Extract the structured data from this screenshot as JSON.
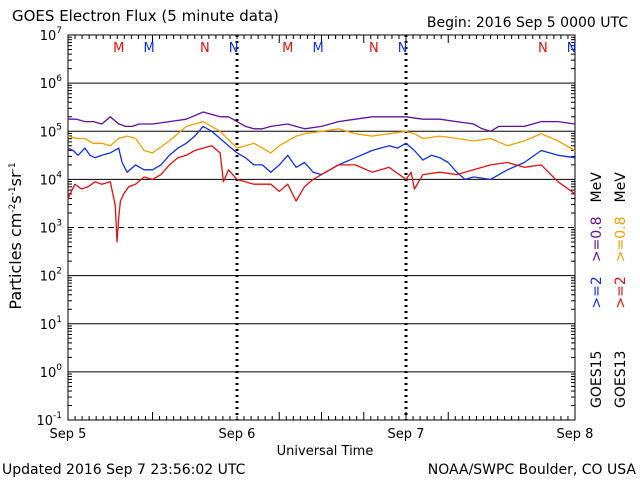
{
  "header": {
    "title": "GOES Electron Flux (5 minute data)",
    "begin": "Begin: 2016 Sep 5 0000 UTC"
  },
  "footer": {
    "updated": "Updated 2016 Sep  7 23:56:02 UTC",
    "credit": "NOAA/SWPC Boulder, CO USA"
  },
  "colors": {
    "goes15_ge2": "#1030e0",
    "goes13_ge2": "#e01010",
    "goes15_ge08": "#6010a0",
    "goes13_ge08": "#f0a000"
  },
  "chart_data": {
    "type": "line",
    "title": "GOES Electron Flux (5 minute data)",
    "xlabel": "Universal Time",
    "ylabel": "Particles cm-2s-1sr-1",
    "ylabel_parts": {
      "base": "Particles cm",
      "e1": "-2",
      "mid": "s",
      "e2": "-1",
      "mid2": "sr",
      "e3": "-1"
    },
    "yscale": "log",
    "ylim_exp": [
      -1,
      7
    ],
    "y_ticks": [
      {
        "exp": -1,
        "label": "10",
        "sup": "-1"
      },
      {
        "exp": 0,
        "label": "10",
        "sup": "0"
      },
      {
        "exp": 1,
        "label": "10",
        "sup": "1"
      },
      {
        "exp": 2,
        "label": "10",
        "sup": "2"
      },
      {
        "exp": 3,
        "label": "10",
        "sup": "3"
      },
      {
        "exp": 4,
        "label": "10",
        "sup": "4"
      },
      {
        "exp": 5,
        "label": "10",
        "sup": "5"
      },
      {
        "exp": 6,
        "label": "10",
        "sup": "6"
      },
      {
        "exp": 7,
        "label": "10",
        "sup": "7"
      }
    ],
    "xlim_days": [
      0,
      3
    ],
    "x_ticks": [
      {
        "day": 0,
        "label": "Sep 5"
      },
      {
        "day": 1,
        "label": "Sep 6"
      },
      {
        "day": 2,
        "label": "Sep 7"
      },
      {
        "day": 3,
        "label": "Sep 8"
      }
    ],
    "threshold_exp": 3,
    "markers": [
      {
        "day": 0.3,
        "text": "M",
        "color": "#e01010"
      },
      {
        "day": 0.48,
        "text": "M",
        "color": "#1030e0"
      },
      {
        "day": 0.81,
        "text": "N",
        "color": "#e01010"
      },
      {
        "day": 0.98,
        "text": "N",
        "color": "#1030e0"
      },
      {
        "day": 1.3,
        "text": "M",
        "color": "#e01010"
      },
      {
        "day": 1.48,
        "text": "M",
        "color": "#1030e0"
      },
      {
        "day": 1.81,
        "text": "N",
        "color": "#e01010"
      },
      {
        "day": 1.98,
        "text": "N",
        "color": "#1030e0"
      },
      {
        "day": 2.81,
        "text": "N",
        "color": "#e01010"
      },
      {
        "day": 2.98,
        "text": "N",
        "color": "#1030e0"
      }
    ],
    "legend": [
      {
        "text": "GOES15",
        "color": "#000000"
      },
      {
        "text": ">=2",
        "color": "#1030e0"
      },
      {
        "text": ">=0.8",
        "color": "#6010a0"
      },
      {
        "text": "MeV",
        "color": "#000000"
      },
      {
        "text": "GOES13",
        "color": "#000000"
      },
      {
        "text": ">=2",
        "color": "#e01010"
      },
      {
        "text": ">=0.8",
        "color": "#f0a000"
      },
      {
        "text": "MeV",
        "color": "#000000"
      }
    ],
    "series": [
      {
        "name": "GOES15 >=0.8 MeV",
        "color": "#6010a0",
        "x": [
          0,
          0.05,
          0.1,
          0.15,
          0.2,
          0.25,
          0.3,
          0.34,
          0.38,
          0.42,
          0.5,
          0.6,
          0.7,
          0.8,
          0.85,
          0.9,
          0.95,
          1.0,
          1.05,
          1.1,
          1.15,
          1.2,
          1.3,
          1.4,
          1.5,
          1.6,
          1.7,
          1.8,
          1.9,
          2.0,
          2.1,
          2.2,
          2.3,
          2.4,
          2.45,
          2.5,
          2.55,
          2.6,
          2.7,
          2.8,
          2.9,
          3.0
        ],
        "y": [
          5.25,
          5.25,
          5.2,
          5.2,
          5.15,
          5.3,
          5.15,
          5.1,
          5.1,
          5.15,
          5.15,
          5.2,
          5.25,
          5.4,
          5.35,
          5.3,
          5.3,
          5.2,
          5.1,
          5.05,
          5.05,
          5.1,
          5.15,
          5.05,
          5.1,
          5.2,
          5.25,
          5.3,
          5.3,
          5.3,
          5.25,
          5.25,
          5.2,
          5.15,
          5.05,
          5.0,
          5.1,
          5.1,
          5.1,
          5.2,
          5.2,
          5.15
        ]
      },
      {
        "name": "GOES13 >=0.8 MeV",
        "color": "#f0a000",
        "x": [
          0,
          0.05,
          0.1,
          0.15,
          0.2,
          0.25,
          0.3,
          0.35,
          0.4,
          0.45,
          0.5,
          0.6,
          0.7,
          0.8,
          0.9,
          1.0,
          1.05,
          1.1,
          1.15,
          1.2,
          1.25,
          1.3,
          1.35,
          1.4,
          1.5,
          1.6,
          1.7,
          1.8,
          1.9,
          2.0,
          2.05,
          2.1,
          2.2,
          2.3,
          2.4,
          2.5,
          2.6,
          2.7,
          2.8,
          2.9,
          3.0
        ],
        "y": [
          4.9,
          4.85,
          4.85,
          4.75,
          4.75,
          4.7,
          4.85,
          4.9,
          4.85,
          4.6,
          4.55,
          4.8,
          5.1,
          5.2,
          5.0,
          4.65,
          4.7,
          4.75,
          4.65,
          4.55,
          4.7,
          4.8,
          4.9,
          4.95,
          5.0,
          5.05,
          4.95,
          4.9,
          4.95,
          5.0,
          4.95,
          4.85,
          4.9,
          4.85,
          4.8,
          4.85,
          4.7,
          4.8,
          4.95,
          4.8,
          4.6
        ]
      },
      {
        "name": "GOES15 >=2 MeV",
        "color": "#1030e0",
        "x": [
          0,
          0.03,
          0.06,
          0.1,
          0.13,
          0.16,
          0.2,
          0.25,
          0.3,
          0.32,
          0.35,
          0.4,
          0.45,
          0.5,
          0.55,
          0.6,
          0.65,
          0.7,
          0.75,
          0.8,
          0.85,
          0.9,
          0.95,
          1.0,
          1.05,
          1.1,
          1.15,
          1.2,
          1.25,
          1.3,
          1.35,
          1.4,
          1.45,
          1.5,
          1.6,
          1.7,
          1.8,
          1.9,
          1.95,
          2.0,
          2.05,
          2.1,
          2.15,
          2.2,
          2.25,
          2.3,
          2.35,
          2.4,
          2.5,
          2.6,
          2.7,
          2.8,
          2.9,
          3.0
        ],
        "y": [
          4.65,
          4.6,
          4.5,
          4.65,
          4.5,
          4.45,
          4.5,
          4.55,
          4.65,
          4.35,
          4.15,
          4.3,
          4.2,
          4.2,
          4.3,
          4.5,
          4.65,
          4.75,
          4.9,
          5.1,
          5.0,
          4.85,
          4.7,
          4.55,
          4.45,
          4.3,
          4.3,
          4.15,
          4.3,
          4.5,
          4.25,
          4.35,
          4.15,
          4.1,
          4.3,
          4.45,
          4.6,
          4.7,
          4.65,
          4.75,
          4.6,
          4.4,
          4.5,
          4.45,
          4.35,
          4.15,
          4.0,
          4.05,
          4.0,
          4.2,
          4.35,
          4.6,
          4.5,
          4.45
        ]
      },
      {
        "name": "GOES13 >=2 MeV",
        "color": "#e01010",
        "x": [
          0,
          0.04,
          0.08,
          0.12,
          0.16,
          0.2,
          0.25,
          0.28,
          0.29,
          0.3,
          0.31,
          0.33,
          0.36,
          0.4,
          0.45,
          0.5,
          0.55,
          0.6,
          0.65,
          0.7,
          0.75,
          0.8,
          0.85,
          0.9,
          0.92,
          0.95,
          1.0,
          1.1,
          1.2,
          1.25,
          1.3,
          1.35,
          1.4,
          1.45,
          1.5,
          1.6,
          1.7,
          1.8,
          1.9,
          2.0,
          2.03,
          2.05,
          2.1,
          2.2,
          2.3,
          2.4,
          2.5,
          2.6,
          2.7,
          2.8,
          2.9,
          3.0
        ],
        "y": [
          3.6,
          3.9,
          3.8,
          3.85,
          3.95,
          3.9,
          3.95,
          3.45,
          2.7,
          3.2,
          3.55,
          3.7,
          3.85,
          3.9,
          4.05,
          4.0,
          4.1,
          4.3,
          4.45,
          4.5,
          4.6,
          4.65,
          4.7,
          4.55,
          3.95,
          4.2,
          4.0,
          3.9,
          3.9,
          3.75,
          3.9,
          3.55,
          3.85,
          4.0,
          4.1,
          4.3,
          4.3,
          4.15,
          4.25,
          4.0,
          4.15,
          3.8,
          4.1,
          4.15,
          4.1,
          4.2,
          4.3,
          4.35,
          4.25,
          4.3,
          3.95,
          3.7
        ]
      }
    ]
  }
}
